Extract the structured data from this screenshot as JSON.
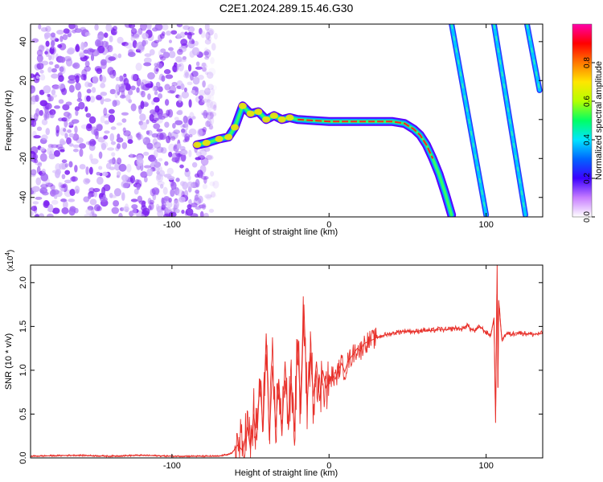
{
  "title": "C2E1.2024.289.15.46.G30",
  "chart_data": [
    {
      "type": "heatmap",
      "xlabel": "Height of straight line (km)",
      "ylabel": "Frequency (Hz)",
      "xlim": [
        -190,
        136
      ],
      "ylim": [
        -50,
        49
      ],
      "x_ticks": [
        -100,
        0,
        100
      ],
      "y_ticks": [
        -40,
        -20,
        0,
        20,
        40
      ],
      "colorbar": {
        "label": "Normalized spectral amplitude",
        "range": [
          0,
          1
        ],
        "ticks": [
          0.0,
          0.2,
          0.4,
          0.6,
          0.8
        ],
        "colors": [
          "#ffffff",
          "#c77dff",
          "#3c00ff",
          "#0064ff",
          "#00e5ff",
          "#00ff64",
          "#b4ff00",
          "#ffe600",
          "#ff7800",
          "#ff0000",
          "#ff00aa"
        ]
      },
      "noise_region": {
        "x": [
          -190,
          -72
        ],
        "y": [
          -50,
          49
        ]
      },
      "trace": [
        {
          "x": -84,
          "y": -13
        },
        {
          "x": -78,
          "y": -12
        },
        {
          "x": -70,
          "y": -10
        },
        {
          "x": -64,
          "y": -9
        },
        {
          "x": -60,
          "y": -4
        },
        {
          "x": -55,
          "y": 7
        },
        {
          "x": -50,
          "y": 3
        },
        {
          "x": -45,
          "y": 4
        },
        {
          "x": -40,
          "y": 0
        },
        {
          "x": -35,
          "y": 2
        },
        {
          "x": -30,
          "y": 0
        },
        {
          "x": -25,
          "y": 1
        },
        {
          "x": -20,
          "y": 0
        },
        {
          "x": 0,
          "y": -1
        },
        {
          "x": 40,
          "y": -1
        },
        {
          "x": 48,
          "y": -2
        },
        {
          "x": 54,
          "y": -5
        },
        {
          "x": 58,
          "y": -8
        },
        {
          "x": 62,
          "y": -13
        },
        {
          "x": 66,
          "y": -20
        },
        {
          "x": 70,
          "y": -28
        },
        {
          "x": 74,
          "y": -38
        },
        {
          "x": 78,
          "y": -49
        }
      ],
      "aliases": [
        {
          "x": [
            78,
            100
          ],
          "y": [
            49,
            -49
          ]
        },
        {
          "x": [
            105,
            125
          ],
          "y": [
            49,
            -49
          ]
        },
        {
          "x": [
            126,
            134
          ],
          "y": [
            49,
            15
          ]
        }
      ]
    },
    {
      "type": "line",
      "xlabel": "Height of straight line (km)",
      "ylabel": "SNR (10 * v/v)",
      "multiplier_label": "(x10",
      "multiplier_exp": "4",
      "xlim": [
        -190,
        136
      ],
      "ylim": [
        0,
        2.2
      ],
      "x_ticks": [
        -100,
        0,
        100
      ],
      "y_ticks": [
        0.0,
        0.5,
        1.0,
        1.5,
        2.0
      ],
      "color": "#e8302a",
      "series": [
        {
          "x": [
            -190,
            -160,
            -140,
            -120,
            -100,
            -80,
            -70,
            -62,
            -58,
            -55,
            -52,
            -50,
            -48,
            -46,
            -44,
            -42,
            -40,
            -38,
            -36,
            -34,
            -32,
            -30,
            -28,
            -26,
            -24,
            -22,
            -20,
            -18,
            -16,
            -14,
            -12,
            -10,
            -8,
            -6,
            -4,
            -2,
            0,
            2,
            4,
            6,
            8,
            10,
            12,
            14,
            16,
            18,
            20,
            22,
            25,
            28,
            31,
            35,
            40,
            45,
            50,
            55,
            60,
            65,
            70,
            75,
            80,
            85,
            88,
            90,
            93,
            96,
            100,
            103,
            105,
            106,
            107,
            107.5,
            108,
            110,
            113,
            116,
            120,
            125,
            130,
            136
          ],
          "y": [
            0.02,
            0.03,
            0.02,
            0.03,
            0.02,
            0.02,
            0.02,
            0.05,
            0.15,
            0.08,
            0.35,
            0.1,
            0.5,
            0.2,
            0.9,
            0.3,
            1.42,
            0.2,
            1.05,
            0.35,
            0.9,
            0.25,
            1.1,
            0.4,
            0.85,
            0.3,
            1.35,
            0.5,
            1.75,
            0.6,
            1.2,
            0.7,
            1.1,
            0.65,
            1.0,
            0.8,
            0.85,
            0.95,
            0.9,
            1.0,
            1.08,
            0.98,
            1.1,
            1.15,
            1.2,
            1.25,
            1.22,
            1.3,
            1.33,
            1.35,
            1.38,
            1.4,
            1.42,
            1.44,
            1.45,
            1.44,
            1.46,
            1.45,
            1.47,
            1.46,
            1.48,
            1.47,
            1.52,
            1.47,
            1.45,
            1.5,
            1.43,
            1.4,
            1.6,
            0.4,
            2.2,
            0.8,
            1.8,
            1.35,
            1.42,
            1.41,
            1.43,
            1.42,
            1.41,
            1.42
          ]
        }
      ]
    }
  ]
}
